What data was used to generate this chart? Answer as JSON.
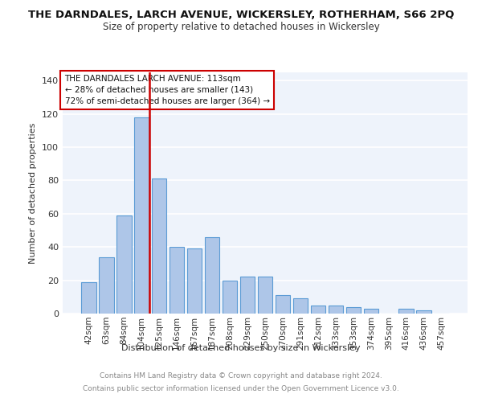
{
  "title": "THE DARNDALES, LARCH AVENUE, WICKERSLEY, ROTHERHAM, S66 2PQ",
  "subtitle": "Size of property relative to detached houses in Wickersley",
  "xlabel": "Distribution of detached houses by size in Wickersley",
  "ylabel": "Number of detached properties",
  "categories": [
    "42sqm",
    "63sqm",
    "84sqm",
    "104sqm",
    "125sqm",
    "146sqm",
    "167sqm",
    "187sqm",
    "208sqm",
    "229sqm",
    "250sqm",
    "270sqm",
    "291sqm",
    "312sqm",
    "333sqm",
    "353sqm",
    "374sqm",
    "395sqm",
    "416sqm",
    "436sqm",
    "457sqm"
  ],
  "values": [
    19,
    34,
    59,
    118,
    81,
    40,
    39,
    46,
    20,
    22,
    22,
    11,
    9,
    5,
    5,
    4,
    3,
    0,
    3,
    2,
    0
  ],
  "bar_color": "#aec6e8",
  "bar_edge_color": "#5b9bd5",
  "background_color": "#eef3fb",
  "grid_color": "#ffffff",
  "vline_color": "#cc0000",
  "annotation_lines": [
    "THE DARNDALES LARCH AVENUE: 113sqm",
    "← 28% of detached houses are smaller (143)",
    "72% of semi-detached houses are larger (364) →"
  ],
  "annotation_box_color": "#cc0000",
  "ylim": [
    0,
    145
  ],
  "yticks": [
    0,
    20,
    40,
    60,
    80,
    100,
    120,
    140
  ],
  "footer1": "Contains HM Land Registry data © Crown copyright and database right 2024.",
  "footer2": "Contains public sector information licensed under the Open Government Licence v3.0."
}
